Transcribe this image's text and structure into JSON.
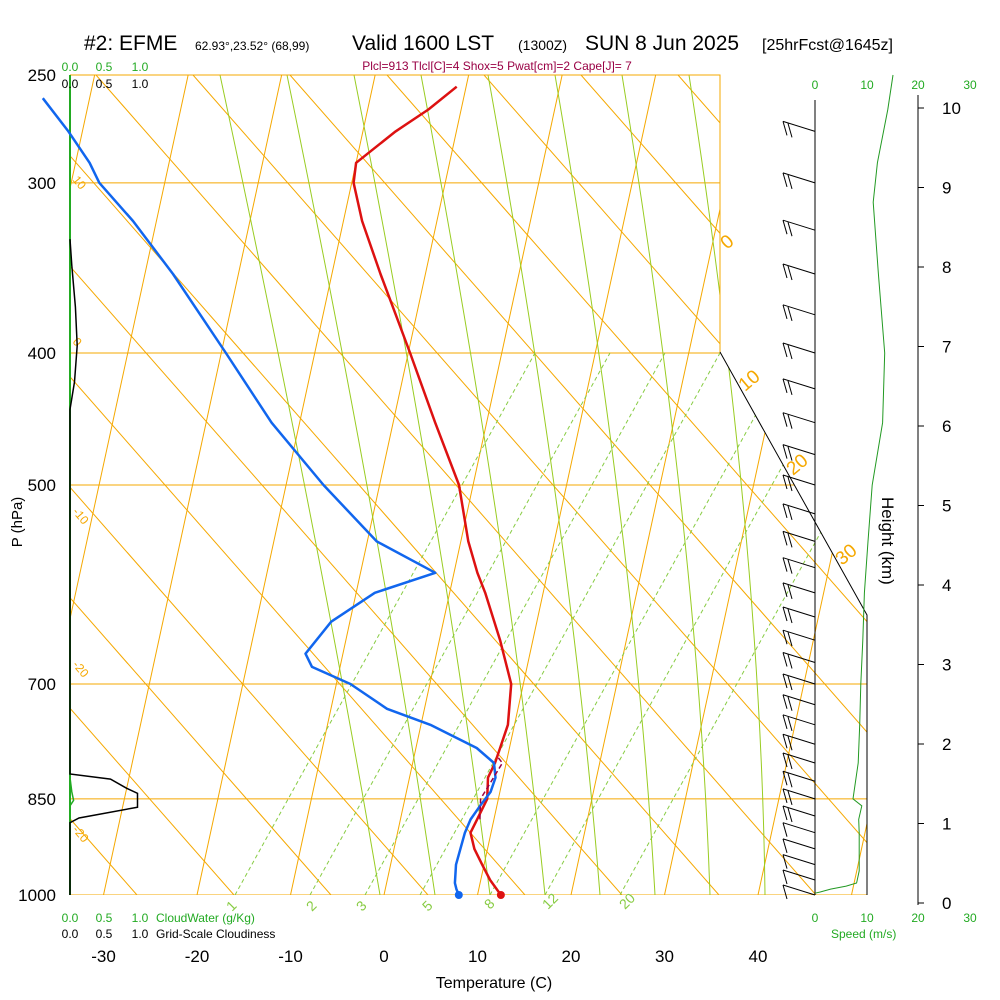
{
  "header": {
    "station": "#2: EFME",
    "coords": "62.93°,23.52° (68,99)",
    "valid": "Valid 1600 LST",
    "zulu": "(1300Z)",
    "date": "SUN 8 Jun 2025",
    "forecast": "[25hrFcst@1645z]",
    "indices": "Plcl=913 Tlcl[C]=4 Shox=5 Pwat[cm]=2 Cape[J]= 7"
  },
  "colors": {
    "temperature": "#dd1111",
    "dewpoint": "#1166ee",
    "isobar_isotherm": "#f5a800",
    "adiabat": "#99cc22",
    "mixing_ratio": "#88cc44",
    "cloud": "#000000",
    "speed": "#229922"
  },
  "chart_data": {
    "type": "line",
    "subtype": "skew-T log-P sounding",
    "xlabel": "Temperature (C)",
    "ylabel": "P (hPa)",
    "y2label": "Height (km)",
    "xlim": [
      -35,
      45
    ],
    "ylim": [
      1000,
      250
    ],
    "x_ticks": [
      -30,
      -20,
      -10,
      0,
      10,
      20,
      30,
      40
    ],
    "p_ticks": [
      250,
      300,
      400,
      500,
      700,
      850,
      1000
    ],
    "height_ticks": [
      0,
      1,
      2,
      3,
      4,
      5,
      6,
      7,
      8,
      9,
      10
    ],
    "cloud_scale_top": [
      "0.0",
      "0.5",
      "1.0"
    ],
    "cloud_scale_bottom": [
      "0.0",
      "0.5",
      "1.0"
    ],
    "cloud_bottom_label_green": "CloudWater (g/Kg)",
    "cloud_bottom_label_black": "Grid-Scale Cloudiness",
    "speed_scale_top": [
      "0",
      "10",
      "20",
      "30"
    ],
    "speed_scale_bottom": [
      "0",
      "10",
      "20",
      "30"
    ],
    "speed_label": "Speed (m/s)",
    "isotherm_labels": [
      "0",
      "10",
      "20",
      "30"
    ],
    "adiabat_labels": [
      "10",
      "-10",
      "-20",
      "0",
      "-20"
    ],
    "mixing_ratio_labels": [
      "1",
      "2",
      "3",
      "5",
      "8",
      "12",
      "20"
    ],
    "series": [
      {
        "name": "Temperature",
        "points": [
          [
            1000,
            12.5
          ],
          [
            975,
            11.0
          ],
          [
            950,
            9.8
          ],
          [
            925,
            8.6
          ],
          [
            900,
            7.8
          ],
          [
            880,
            8.2
          ],
          [
            850,
            8.8
          ],
          [
            820,
            8.4
          ],
          [
            800,
            8.8
          ],
          [
            780,
            9.0
          ],
          [
            750,
            9.3
          ],
          [
            700,
            8.7
          ],
          [
            650,
            6.5
          ],
          [
            600,
            3.8
          ],
          [
            580,
            2.5
          ],
          [
            550,
            0.8
          ],
          [
            500,
            -1.5
          ],
          [
            450,
            -5.5
          ],
          [
            400,
            -9.8
          ],
          [
            350,
            -14.8
          ],
          [
            320,
            -18.0
          ],
          [
            300,
            -19.8
          ],
          [
            290,
            -20.0
          ],
          [
            275,
            -16.5
          ],
          [
            265,
            -13.5
          ],
          [
            255,
            -11.0
          ]
        ]
      },
      {
        "name": "Dewpoint",
        "points": [
          [
            1000,
            8.0
          ],
          [
            990,
            7.6
          ],
          [
            980,
            7.3
          ],
          [
            950,
            7.0
          ],
          [
            900,
            7.2
          ],
          [
            880,
            7.5
          ],
          [
            860,
            8.2
          ],
          [
            840,
            9.0
          ],
          [
            820,
            9.2
          ],
          [
            800,
            8.7
          ],
          [
            780,
            6.5
          ],
          [
            750,
            1.0
          ],
          [
            730,
            -4.0
          ],
          [
            700,
            -8.5
          ],
          [
            680,
            -13.0
          ],
          [
            665,
            -14.0
          ],
          [
            630,
            -12.0
          ],
          [
            600,
            -8.0
          ],
          [
            580,
            -2.0
          ],
          [
            550,
            -9.0
          ],
          [
            500,
            -16.0
          ],
          [
            450,
            -23.0
          ],
          [
            400,
            -29.5
          ],
          [
            350,
            -37.0
          ],
          [
            320,
            -42.5
          ],
          [
            300,
            -47.0
          ],
          [
            290,
            -48.5
          ],
          [
            275,
            -51.5
          ],
          [
            260,
            -55.0
          ]
        ]
      }
    ],
    "parcel": [
      [
        880,
        8.5
      ],
      [
        850,
        8.1
      ],
      [
        800,
        9.6
      ],
      [
        790,
        8.8
      ]
    ],
    "cloud_water": [
      [
        1000,
        0
      ],
      [
        860,
        0
      ],
      [
        852,
        0.04
      ],
      [
        840,
        0.02
      ],
      [
        820,
        0
      ],
      [
        790,
        0
      ]
    ],
    "cloudiness": [
      [
        1000,
        0
      ],
      [
        885,
        0
      ],
      [
        878,
        0.1
      ],
      [
        862,
        0.75
      ],
      [
        842,
        0.75
      ],
      [
        835,
        0.63
      ],
      [
        822,
        0.45
      ],
      [
        815,
        0
      ],
      [
        440,
        0
      ],
      [
        420,
        0.05
      ],
      [
        395,
        0.08
      ],
      [
        370,
        0.06
      ],
      [
        345,
        0.02
      ],
      [
        330,
        0
      ]
    ],
    "wind_speed": [
      [
        997,
        0
      ],
      [
        995,
        1
      ],
      [
        990,
        3
      ],
      [
        985,
        6
      ],
      [
        980,
        8
      ],
      [
        960,
        8.5
      ],
      [
        900,
        8.5
      ],
      [
        880,
        8.4
      ],
      [
        860,
        9
      ],
      [
        850,
        7.3
      ],
      [
        840,
        7.5
      ],
      [
        800,
        8.3
      ],
      [
        750,
        8.6
      ],
      [
        700,
        8.8
      ],
      [
        650,
        9.2
      ],
      [
        600,
        9.5
      ],
      [
        550,
        10.2
      ],
      [
        500,
        11
      ],
      [
        450,
        13
      ],
      [
        400,
        13.4
      ],
      [
        350,
        12.2
      ],
      [
        310,
        11.2
      ],
      [
        290,
        12
      ],
      [
        265,
        14
      ],
      [
        250,
        15
      ]
    ]
  }
}
